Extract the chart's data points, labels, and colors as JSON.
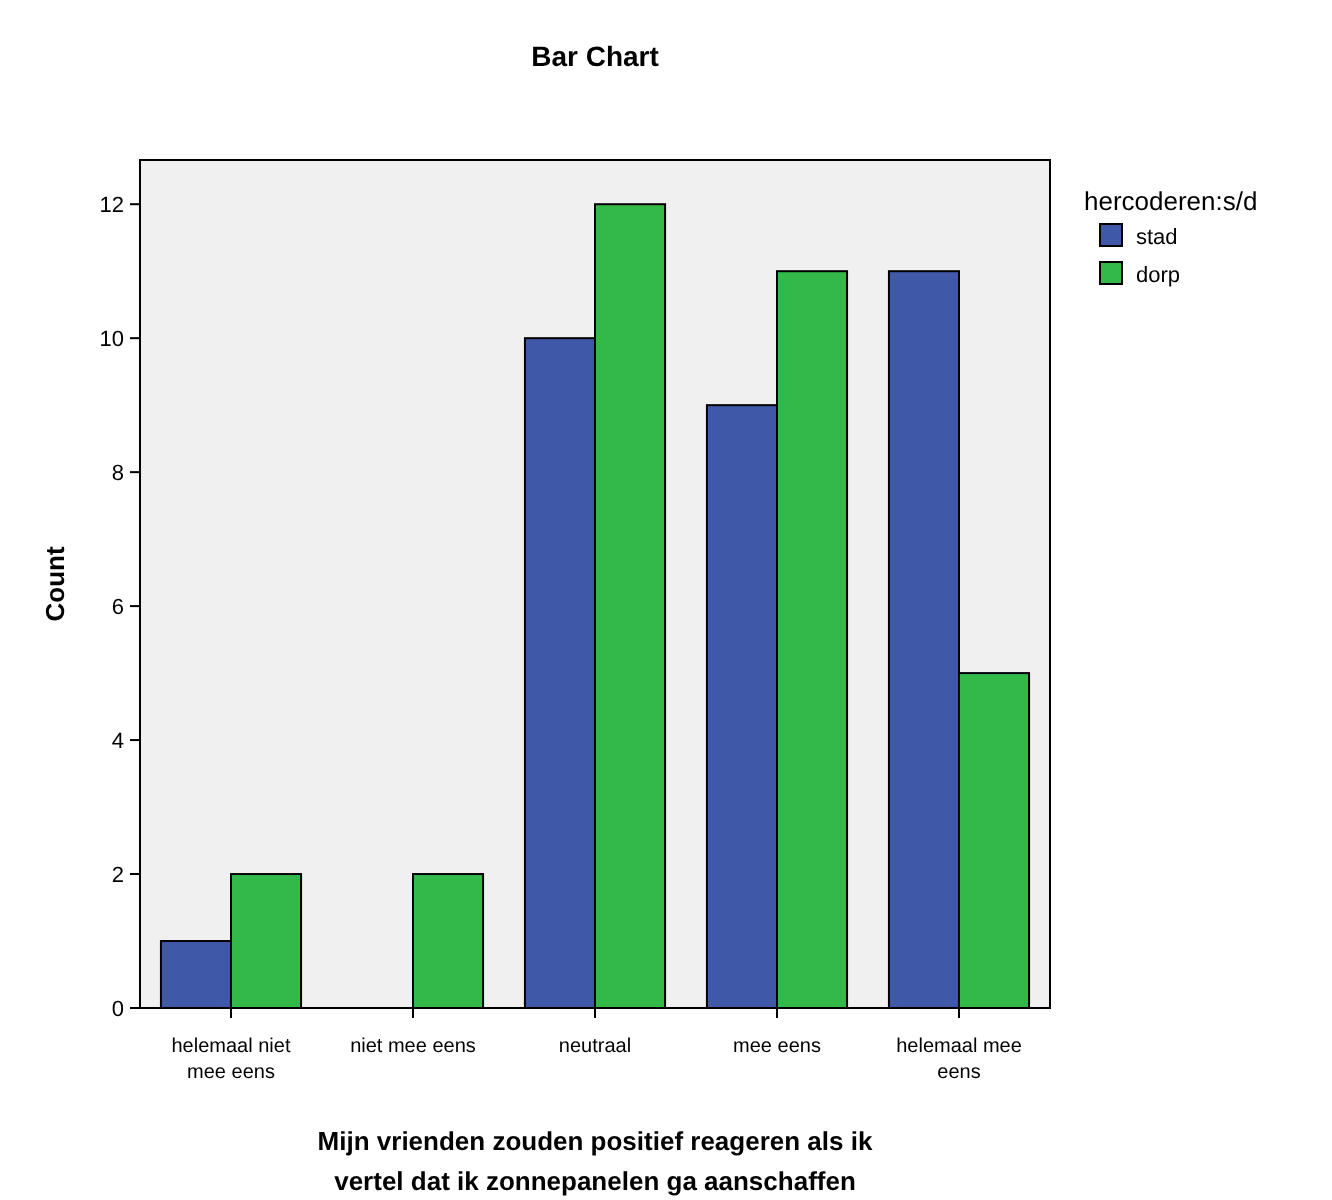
{
  "chart_data": {
    "type": "bar",
    "title": "Bar Chart",
    "xlabel": "Mijn vrienden zouden positief reageren als ik vertel dat ik zonnepanelen ga aanschaffen",
    "ylabel": "Count",
    "legend_title": "hercoderen:s/d",
    "categories": [
      "helemaal niet mee eens",
      "niet mee eens",
      "neutraal",
      "mee eens",
      "helemaal mee eens"
    ],
    "series": [
      {
        "name": "stad",
        "color": "#3f58a8",
        "values": [
          1,
          null,
          10,
          9,
          11
        ]
      },
      {
        "name": "dorp",
        "color": "#33b84a",
        "values": [
          2,
          2,
          12,
          11,
          5
        ]
      }
    ],
    "ylim": [
      0,
      12.66
    ],
    "yticks": [
      0,
      2,
      4,
      6,
      8,
      10,
      12
    ],
    "grid": false,
    "legend": "top right"
  }
}
